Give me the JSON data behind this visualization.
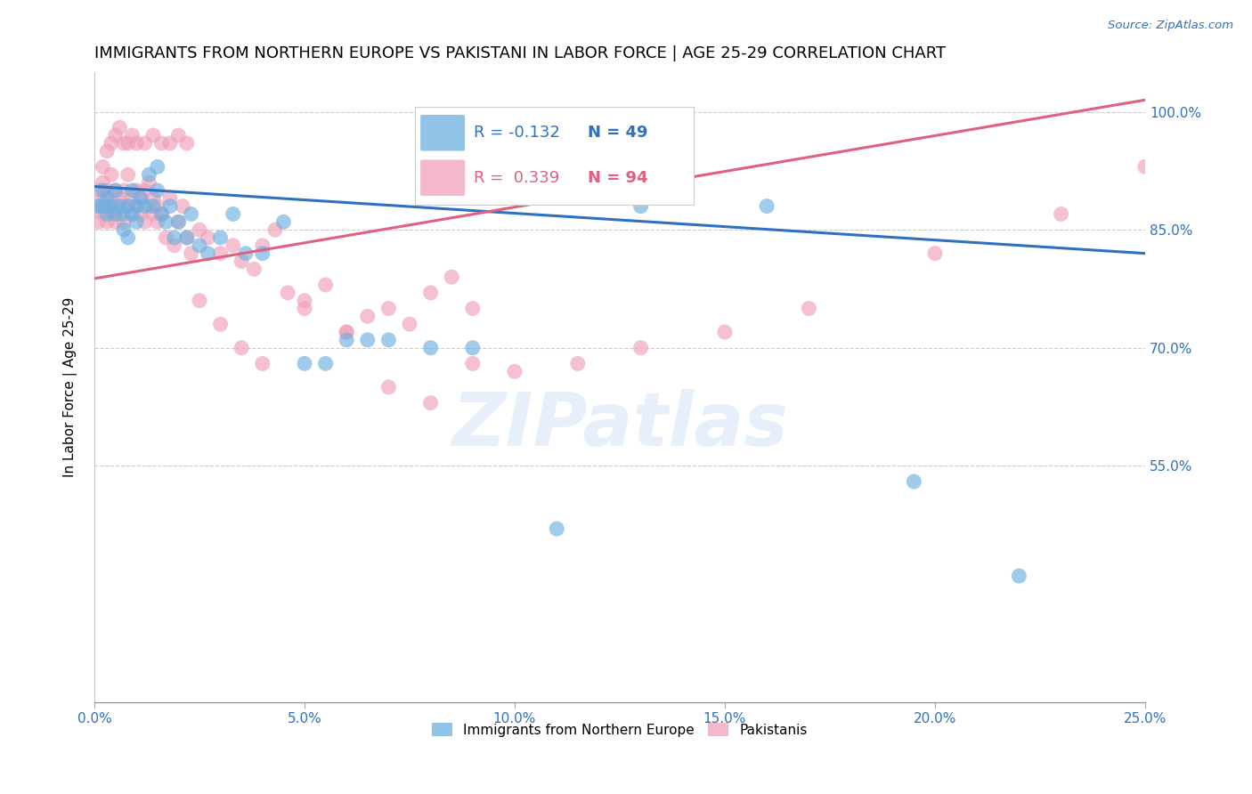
{
  "title": "IMMIGRANTS FROM NORTHERN EUROPE VS PAKISTANI IN LABOR FORCE | AGE 25-29 CORRELATION CHART",
  "source": "Source: ZipAtlas.com",
  "ylabel_label": "In Labor Force | Age 25-29",
  "x_tick_labels": [
    "0.0%",
    "5.0%",
    "10.0%",
    "15.0%",
    "20.0%",
    "25.0%"
  ],
  "x_tick_values": [
    0.0,
    0.05,
    0.1,
    0.15,
    0.2,
    0.25
  ],
  "y_tick_labels": [
    "100.0%",
    "85.0%",
    "70.0%",
    "55.0%"
  ],
  "y_tick_values": [
    1.0,
    0.85,
    0.7,
    0.55
  ],
  "xlim": [
    0.0,
    0.25
  ],
  "ylim": [
    0.25,
    1.05
  ],
  "blue_color": "#6EB0E0",
  "pink_color": "#F0A0B8",
  "blue_line_color": "#3070C0",
  "pink_line_color": "#E06080",
  "legend_blue_label": "Immigrants from Northern Europe",
  "legend_pink_label": "Pakistanis",
  "r_blue": "-0.132",
  "n_blue": "49",
  "r_pink": "0.339",
  "n_pink": "94",
  "blue_scatter_x": [
    0.001,
    0.002,
    0.002,
    0.003,
    0.003,
    0.004,
    0.005,
    0.005,
    0.006,
    0.007,
    0.008,
    0.009,
    0.009,
    0.01,
    0.01,
    0.011,
    0.012,
    0.013,
    0.014,
    0.015,
    0.016,
    0.017,
    0.018,
    0.019,
    0.02,
    0.022,
    0.023,
    0.025,
    0.027,
    0.03,
    0.033,
    0.036,
    0.04,
    0.045,
    0.05,
    0.055,
    0.06,
    0.065,
    0.07,
    0.08,
    0.09,
    0.11,
    0.13,
    0.16,
    0.195,
    0.22,
    0.007,
    0.008,
    0.015
  ],
  "blue_scatter_y": [
    0.88,
    0.88,
    0.9,
    0.87,
    0.89,
    0.88,
    0.87,
    0.9,
    0.88,
    0.87,
    0.88,
    0.87,
    0.9,
    0.86,
    0.88,
    0.89,
    0.88,
    0.92,
    0.88,
    0.9,
    0.87,
    0.86,
    0.88,
    0.84,
    0.86,
    0.84,
    0.87,
    0.83,
    0.82,
    0.84,
    0.87,
    0.82,
    0.82,
    0.86,
    0.68,
    0.68,
    0.71,
    0.71,
    0.71,
    0.7,
    0.7,
    0.47,
    0.88,
    0.88,
    0.53,
    0.41,
    0.85,
    0.84,
    0.93
  ],
  "pink_scatter_x": [
    0.001,
    0.001,
    0.001,
    0.002,
    0.002,
    0.002,
    0.003,
    0.003,
    0.003,
    0.004,
    0.004,
    0.004,
    0.005,
    0.005,
    0.005,
    0.006,
    0.006,
    0.007,
    0.007,
    0.007,
    0.008,
    0.008,
    0.009,
    0.009,
    0.01,
    0.01,
    0.011,
    0.011,
    0.012,
    0.012,
    0.013,
    0.013,
    0.014,
    0.014,
    0.015,
    0.015,
    0.016,
    0.017,
    0.018,
    0.019,
    0.02,
    0.021,
    0.022,
    0.023,
    0.025,
    0.027,
    0.03,
    0.033,
    0.035,
    0.038,
    0.04,
    0.043,
    0.046,
    0.05,
    0.055,
    0.06,
    0.065,
    0.07,
    0.075,
    0.08,
    0.085,
    0.09,
    0.002,
    0.003,
    0.004,
    0.005,
    0.006,
    0.007,
    0.008,
    0.009,
    0.01,
    0.012,
    0.014,
    0.016,
    0.018,
    0.02,
    0.022,
    0.025,
    0.03,
    0.035,
    0.04,
    0.05,
    0.06,
    0.07,
    0.08,
    0.09,
    0.1,
    0.115,
    0.13,
    0.15,
    0.17,
    0.2,
    0.23,
    0.25
  ],
  "pink_scatter_y": [
    0.88,
    0.9,
    0.86,
    0.89,
    0.87,
    0.91,
    0.88,
    0.9,
    0.86,
    0.89,
    0.87,
    0.92,
    0.88,
    0.9,
    0.86,
    0.89,
    0.87,
    0.88,
    0.9,
    0.86,
    0.92,
    0.88,
    0.89,
    0.87,
    0.88,
    0.9,
    0.87,
    0.89,
    0.86,
    0.9,
    0.88,
    0.91,
    0.87,
    0.89,
    0.88,
    0.86,
    0.87,
    0.84,
    0.89,
    0.83,
    0.86,
    0.88,
    0.84,
    0.82,
    0.85,
    0.84,
    0.82,
    0.83,
    0.81,
    0.8,
    0.83,
    0.85,
    0.77,
    0.76,
    0.78,
    0.72,
    0.74,
    0.75,
    0.73,
    0.77,
    0.79,
    0.75,
    0.93,
    0.95,
    0.96,
    0.97,
    0.98,
    0.96,
    0.96,
    0.97,
    0.96,
    0.96,
    0.97,
    0.96,
    0.96,
    0.97,
    0.96,
    0.76,
    0.73,
    0.7,
    0.68,
    0.75,
    0.72,
    0.65,
    0.63,
    0.68,
    0.67,
    0.68,
    0.7,
    0.72,
    0.75,
    0.82,
    0.87,
    0.93
  ],
  "watermark_text": "ZIPatlas",
  "background_color": "#FFFFFF",
  "grid_color": "#CCCCCC",
  "axis_label_color": "#3070C0",
  "title_fontsize": 13,
  "axis_tick_fontsize": 11
}
